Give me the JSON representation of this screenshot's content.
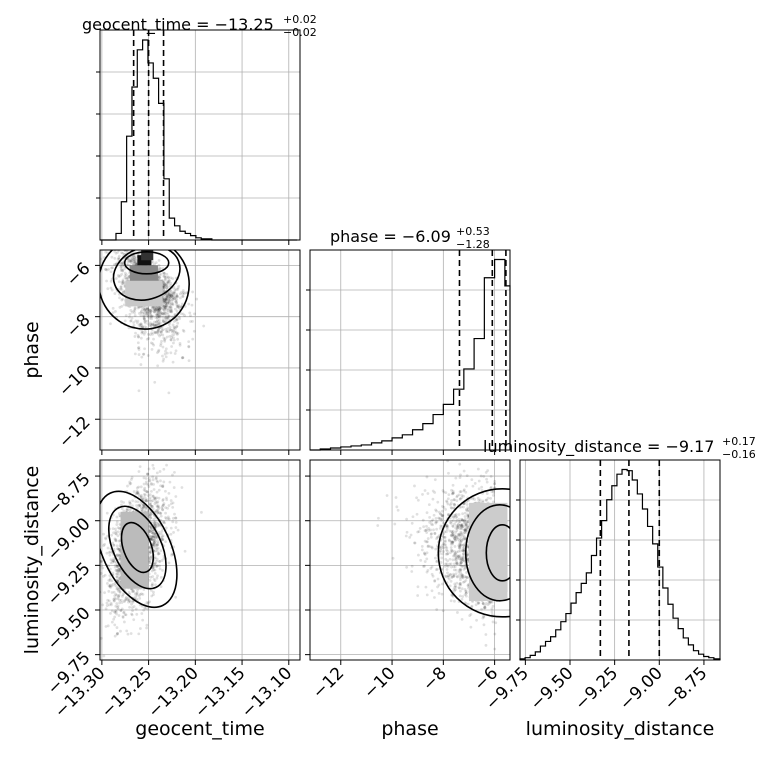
{
  "chart_data": {
    "type": "corner",
    "parameters": [
      {
        "name": "geocent_time",
        "axis_label": "geocent_time",
        "title": {
          "prefix": "geocent_time = −13.25",
          "upper": "+0.02",
          "lower": "−0.02"
        },
        "median": -13.25,
        "quantiles": [
          -13.266,
          -13.25,
          -13.234
        ],
        "range": [
          -13.302,
          -13.088
        ],
        "ticks": [
          -13.3,
          -13.25,
          -13.2,
          -13.15,
          -13.1
        ],
        "tick_labels": [
          "−13.30",
          "−13.25",
          "−13.20",
          "−13.15",
          "−13.10"
        ],
        "hist": {
          "edges": [
            -13.302,
            -13.2963,
            -13.2906,
            -13.2849,
            -13.2792,
            -13.2735,
            -13.2678,
            -13.2621,
            -13.2564,
            -13.2507,
            -13.245,
            -13.2393,
            -13.2336,
            -13.2279,
            -13.2222,
            -13.2165,
            -13.2108,
            -13.2051,
            -13.1994,
            -13.1937,
            -13.188,
            -13.1823,
            -13.1766,
            -13.1709,
            -13.1652,
            -13.1595,
            -13.1538,
            -13.1481,
            -13.1424,
            -13.1367,
            -13.131,
            -13.1253,
            -13.1196,
            -13.1139,
            -13.1082,
            -13.1025,
            -13.0968,
            -13.0911
          ],
          "counts": [
            0,
            0,
            0,
            6,
            35,
            95,
            140,
            174,
            183,
            162,
            148,
            125,
            56,
            20,
            13,
            8,
            6,
            4,
            2,
            1,
            1,
            0,
            0,
            0,
            0,
            0,
            0,
            0,
            0,
            0,
            0,
            0,
            0,
            0,
            0,
            0,
            0
          ]
        }
      },
      {
        "name": "phase",
        "axis_label": "phase",
        "title": {
          "prefix": "phase = −6.09",
          "upper": "+0.53",
          "lower": "−1.28"
        },
        "median": -6.09,
        "quantiles": [
          -7.37,
          -6.09,
          -5.56
        ],
        "range": [
          -13.2,
          -5.4
        ],
        "ticks": [
          -12,
          -10,
          -8,
          -6
        ],
        "tick_labels": [
          "−12",
          "−10",
          "−8",
          "−6"
        ],
        "hist": {
          "edges": [
            -13.2,
            -12.8,
            -12.4,
            -12.0,
            -11.6,
            -11.2,
            -10.8,
            -10.4,
            -10.0,
            -9.6,
            -9.2,
            -8.8,
            -8.4,
            -8.0,
            -7.6,
            -7.2,
            -6.8,
            -6.4,
            -6.0,
            -5.6,
            -5.4
          ],
          "counts": [
            0,
            1,
            2,
            3,
            4,
            5,
            7,
            9,
            12,
            15,
            20,
            26,
            35,
            45,
            60,
            80,
            110,
            170,
            188,
            162
          ]
        }
      },
      {
        "name": "luminosity_distance",
        "axis_label": "luminosity_distance",
        "title": {
          "prefix": "luminosity_distance = −9.17",
          "upper": "+0.17",
          "lower": "−0.16"
        },
        "median": -9.17,
        "quantiles": [
          -9.33,
          -9.17,
          -9.0
        ],
        "range": [
          -9.78,
          -8.66
        ],
        "ticks": [
          -9.75,
          -9.5,
          -9.25,
          -9.0,
          -8.75
        ],
        "tick_labels": [
          "−9.75",
          "−9.50",
          "−9.25",
          "−9.00",
          "−8.75"
        ],
        "hist": {
          "edges": [
            -9.78,
            -9.7514,
            -9.7229,
            -9.6943,
            -9.6657,
            -9.6371,
            -9.6086,
            -9.58,
            -9.5514,
            -9.5229,
            -9.4943,
            -9.4657,
            -9.4371,
            -9.4086,
            -9.38,
            -9.3514,
            -9.3229,
            -9.2943,
            -9.2657,
            -9.2371,
            -9.2086,
            -9.18,
            -9.1514,
            -9.1229,
            -9.0943,
            -9.0657,
            -9.0371,
            -9.0086,
            -8.98,
            -8.9514,
            -8.9229,
            -8.8943,
            -8.8657,
            -8.8371,
            -8.8086,
            -8.78,
            -8.7514,
            -8.7229,
            -8.6943,
            -8.66
          ],
          "counts": [
            1,
            2,
            4,
            7,
            12,
            16,
            20,
            26,
            33,
            40,
            49,
            58,
            66,
            75,
            90,
            105,
            120,
            138,
            150,
            160,
            164,
            163,
            155,
            143,
            130,
            115,
            100,
            80,
            62,
            48,
            36,
            27,
            19,
            13,
            8,
            5,
            3,
            2,
            1
          ]
        }
      }
    ],
    "pairs": [
      {
        "x": "geocent_time",
        "y": "phase"
      },
      {
        "x": "geocent_time",
        "y": "luminosity_distance"
      },
      {
        "x": "phase",
        "y": "luminosity_distance"
      }
    ],
    "grid": true
  }
}
